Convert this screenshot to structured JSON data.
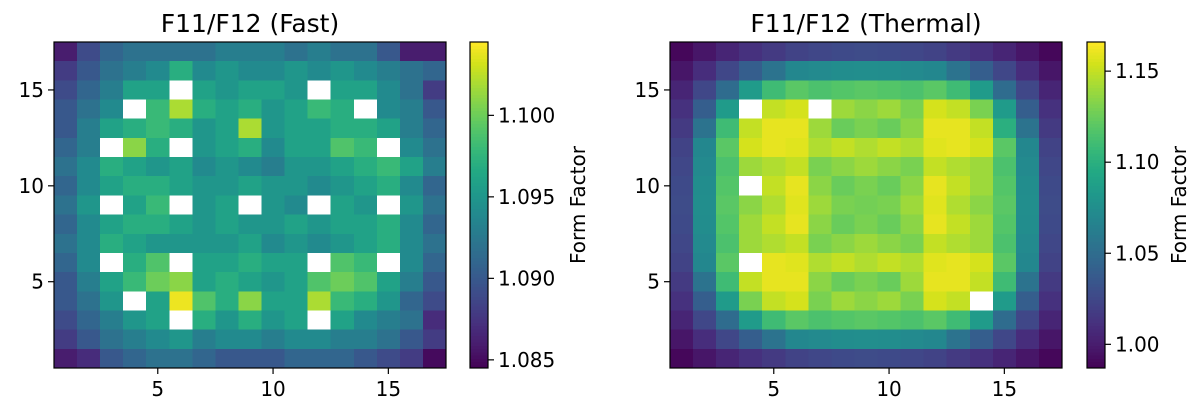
{
  "chart_data": [
    {
      "type": "heatmap",
      "title": "F11/F12 (Fast)",
      "xlabel": "",
      "ylabel": "",
      "xlim": [
        0.5,
        17.5
      ],
      "ylim": [
        0.5,
        17.5
      ],
      "x_ticks": [
        "5",
        "10",
        "15"
      ],
      "y_ticks": [
        "5",
        "10",
        "15"
      ],
      "colorbar": {
        "label": "Form Factor",
        "range": [
          1.0845,
          1.1045
        ],
        "ticks": [
          "1.085",
          "1.090",
          "1.095",
          "1.100"
        ]
      },
      "missing_value_color": "#ffffff",
      "rows_top_to_bottom": [
        [
          1.086,
          1.089,
          1.091,
          1.092,
          1.092,
          1.092,
          1.092,
          1.093,
          1.093,
          1.093,
          1.092,
          1.093,
          1.092,
          1.092,
          1.09,
          1.086,
          1.086
        ],
        [
          1.088,
          1.09,
          1.092,
          1.093,
          1.094,
          1.097,
          1.094,
          1.095,
          1.094,
          1.094,
          1.095,
          1.094,
          1.095,
          1.094,
          1.093,
          1.092,
          1.091
        ],
        [
          1.089,
          1.091,
          1.093,
          1.096,
          1.096,
          null,
          1.096,
          1.095,
          1.096,
          1.096,
          1.095,
          null,
          1.096,
          1.096,
          1.094,
          1.092,
          1.088
        ],
        [
          1.09,
          1.092,
          1.094,
          null,
          1.098,
          1.102,
          1.097,
          1.096,
          1.097,
          1.095,
          1.096,
          1.098,
          1.097,
          null,
          1.094,
          1.093,
          1.09
        ],
        [
          1.09,
          1.093,
          1.096,
          1.097,
          1.098,
          1.097,
          1.095,
          1.096,
          1.102,
          1.095,
          1.096,
          1.096,
          1.097,
          1.097,
          1.096,
          1.093,
          1.091
        ],
        [
          1.091,
          1.093,
          null,
          1.101,
          1.097,
          null,
          1.095,
          1.096,
          1.097,
          1.094,
          1.096,
          1.096,
          1.099,
          1.098,
          null,
          1.094,
          1.092
        ],
        [
          1.092,
          1.094,
          1.097,
          1.096,
          1.095,
          1.096,
          1.094,
          1.095,
          1.094,
          1.093,
          1.095,
          1.095,
          1.096,
          1.097,
          1.098,
          1.096,
          1.093
        ],
        [
          1.091,
          1.094,
          1.096,
          1.097,
          1.097,
          1.096,
          1.095,
          1.095,
          1.096,
          1.095,
          1.095,
          1.094,
          1.095,
          1.096,
          1.097,
          1.094,
          1.091
        ],
        [
          1.092,
          1.095,
          null,
          1.096,
          1.098,
          null,
          1.095,
          1.096,
          null,
          1.095,
          1.094,
          null,
          1.096,
          1.095,
          null,
          1.095,
          1.092
        ],
        [
          1.091,
          1.094,
          1.096,
          1.097,
          1.097,
          1.096,
          1.095,
          1.096,
          1.095,
          1.095,
          1.096,
          1.095,
          1.096,
          1.096,
          1.097,
          1.094,
          1.091
        ],
        [
          1.092,
          1.094,
          1.097,
          1.096,
          1.095,
          1.095,
          1.095,
          1.095,
          1.096,
          1.094,
          1.095,
          1.094,
          1.095,
          1.096,
          1.097,
          1.094,
          1.092
        ],
        [
          1.091,
          1.094,
          null,
          1.097,
          1.099,
          null,
          1.096,
          1.096,
          1.097,
          1.096,
          1.096,
          null,
          1.099,
          1.098,
          null,
          1.094,
          1.091
        ],
        [
          1.09,
          1.093,
          1.096,
          1.098,
          1.1,
          1.101,
          1.096,
          1.097,
          1.096,
          1.095,
          1.096,
          1.099,
          1.1,
          1.099,
          1.096,
          1.093,
          1.09
        ],
        [
          1.09,
          1.092,
          1.095,
          null,
          1.096,
          1.104,
          1.099,
          1.097,
          1.101,
          1.096,
          1.096,
          1.102,
          1.098,
          1.097,
          1.095,
          1.091,
          1.089
        ],
        [
          1.089,
          1.091,
          1.093,
          1.095,
          1.096,
          null,
          1.097,
          1.095,
          1.097,
          1.095,
          1.096,
          null,
          1.096,
          1.094,
          1.093,
          1.092,
          1.087
        ],
        [
          1.088,
          1.09,
          1.092,
          1.093,
          1.094,
          1.095,
          1.093,
          1.094,
          1.094,
          1.093,
          1.094,
          1.094,
          1.093,
          1.093,
          1.092,
          1.09,
          1.088
        ],
        [
          1.086,
          1.087,
          1.09,
          1.091,
          1.092,
          1.092,
          1.091,
          1.09,
          1.09,
          1.09,
          1.091,
          1.091,
          1.091,
          1.09,
          1.089,
          1.088,
          1.085
        ]
      ]
    },
    {
      "type": "heatmap",
      "title": "F11/F12 (Thermal)",
      "xlabel": "",
      "ylabel": "",
      "xlim": [
        0.5,
        17.5
      ],
      "ylim": [
        0.5,
        17.5
      ],
      "x_ticks": [
        "5",
        "10",
        "15"
      ],
      "y_ticks": [
        "5",
        "10",
        "15"
      ],
      "colorbar": {
        "label": "Form Factor",
        "range": [
          0.987,
          1.166
        ],
        "ticks": [
          "1.00",
          "1.05",
          "1.10",
          "1.15"
        ]
      },
      "missing_value_color": "#ffffff",
      "rows_top_to_bottom": [
        [
          0.99,
          0.997,
          1.005,
          1.012,
          1.017,
          1.022,
          1.025,
          1.027,
          1.028,
          1.027,
          1.025,
          1.022,
          1.017,
          1.012,
          1.005,
          0.997,
          0.99
        ],
        [
          0.997,
          1.01,
          1.025,
          1.04,
          1.055,
          1.07,
          1.072,
          1.074,
          1.075,
          1.074,
          1.072,
          1.07,
          1.055,
          1.04,
          1.025,
          1.01,
          0.997
        ],
        [
          1.005,
          1.025,
          1.05,
          1.085,
          1.11,
          1.12,
          1.115,
          1.118,
          1.12,
          1.118,
          1.115,
          1.12,
          1.11,
          1.085,
          1.05,
          1.025,
          1.005
        ],
        [
          1.012,
          1.04,
          1.085,
          null,
          1.15,
          1.155,
          null,
          1.14,
          1.135,
          1.14,
          1.13,
          1.155,
          1.15,
          1.13,
          1.085,
          1.04,
          1.012
        ],
        [
          1.017,
          1.055,
          1.11,
          1.15,
          1.16,
          1.16,
          1.14,
          1.125,
          1.13,
          1.125,
          1.135,
          1.16,
          1.16,
          1.15,
          1.1,
          1.055,
          1.017
        ],
        [
          1.022,
          1.07,
          1.12,
          1.155,
          1.16,
          1.158,
          1.145,
          1.15,
          1.145,
          1.15,
          1.145,
          1.158,
          1.16,
          1.155,
          1.12,
          1.07,
          1.022
        ],
        [
          1.025,
          1.072,
          1.115,
          1.14,
          1.145,
          1.15,
          1.13,
          1.135,
          1.14,
          1.135,
          1.13,
          1.15,
          1.145,
          1.14,
          1.115,
          1.072,
          1.025
        ],
        [
          1.027,
          1.074,
          1.118,
          null,
          1.15,
          1.16,
          1.135,
          1.125,
          1.13,
          1.125,
          1.135,
          1.16,
          1.15,
          1.14,
          1.118,
          1.074,
          1.027
        ],
        [
          1.028,
          1.075,
          1.12,
          1.135,
          1.145,
          1.158,
          1.14,
          1.13,
          1.128,
          1.13,
          1.14,
          1.158,
          1.145,
          1.135,
          1.12,
          1.075,
          1.028
        ],
        [
          1.027,
          1.074,
          1.118,
          1.14,
          1.15,
          1.16,
          1.135,
          1.125,
          1.13,
          1.125,
          1.135,
          1.16,
          1.15,
          1.14,
          1.118,
          1.074,
          1.027
        ],
        [
          1.025,
          1.072,
          1.115,
          1.14,
          1.145,
          1.15,
          1.13,
          1.135,
          1.14,
          1.135,
          1.13,
          1.15,
          1.145,
          1.14,
          1.115,
          1.072,
          1.025
        ],
        [
          1.022,
          1.07,
          1.12,
          null,
          1.16,
          1.158,
          1.145,
          1.15,
          1.145,
          1.15,
          1.145,
          1.158,
          1.16,
          1.155,
          1.12,
          1.07,
          1.022
        ],
        [
          1.017,
          1.055,
          1.11,
          1.15,
          1.16,
          1.16,
          1.135,
          1.125,
          1.13,
          1.125,
          1.14,
          1.16,
          1.16,
          1.15,
          1.11,
          1.055,
          1.017
        ],
        [
          1.012,
          1.04,
          1.085,
          1.13,
          1.15,
          1.155,
          1.13,
          1.14,
          1.135,
          1.14,
          1.13,
          1.155,
          1.15,
          null,
          1.085,
          1.04,
          1.012
        ],
        [
          1.005,
          1.025,
          1.05,
          1.085,
          1.11,
          1.12,
          1.115,
          1.118,
          1.12,
          1.118,
          1.115,
          1.12,
          1.11,
          1.085,
          1.05,
          1.025,
          1.005
        ],
        [
          0.997,
          1.01,
          1.025,
          1.04,
          1.055,
          1.07,
          1.072,
          1.074,
          1.075,
          1.074,
          1.072,
          1.07,
          1.055,
          1.04,
          1.025,
          1.01,
          0.997
        ],
        [
          0.99,
          0.997,
          1.005,
          1.012,
          1.017,
          1.022,
          1.025,
          1.027,
          1.028,
          1.027,
          1.025,
          1.022,
          1.017,
          1.012,
          1.005,
          0.997,
          0.99
        ]
      ]
    }
  ]
}
